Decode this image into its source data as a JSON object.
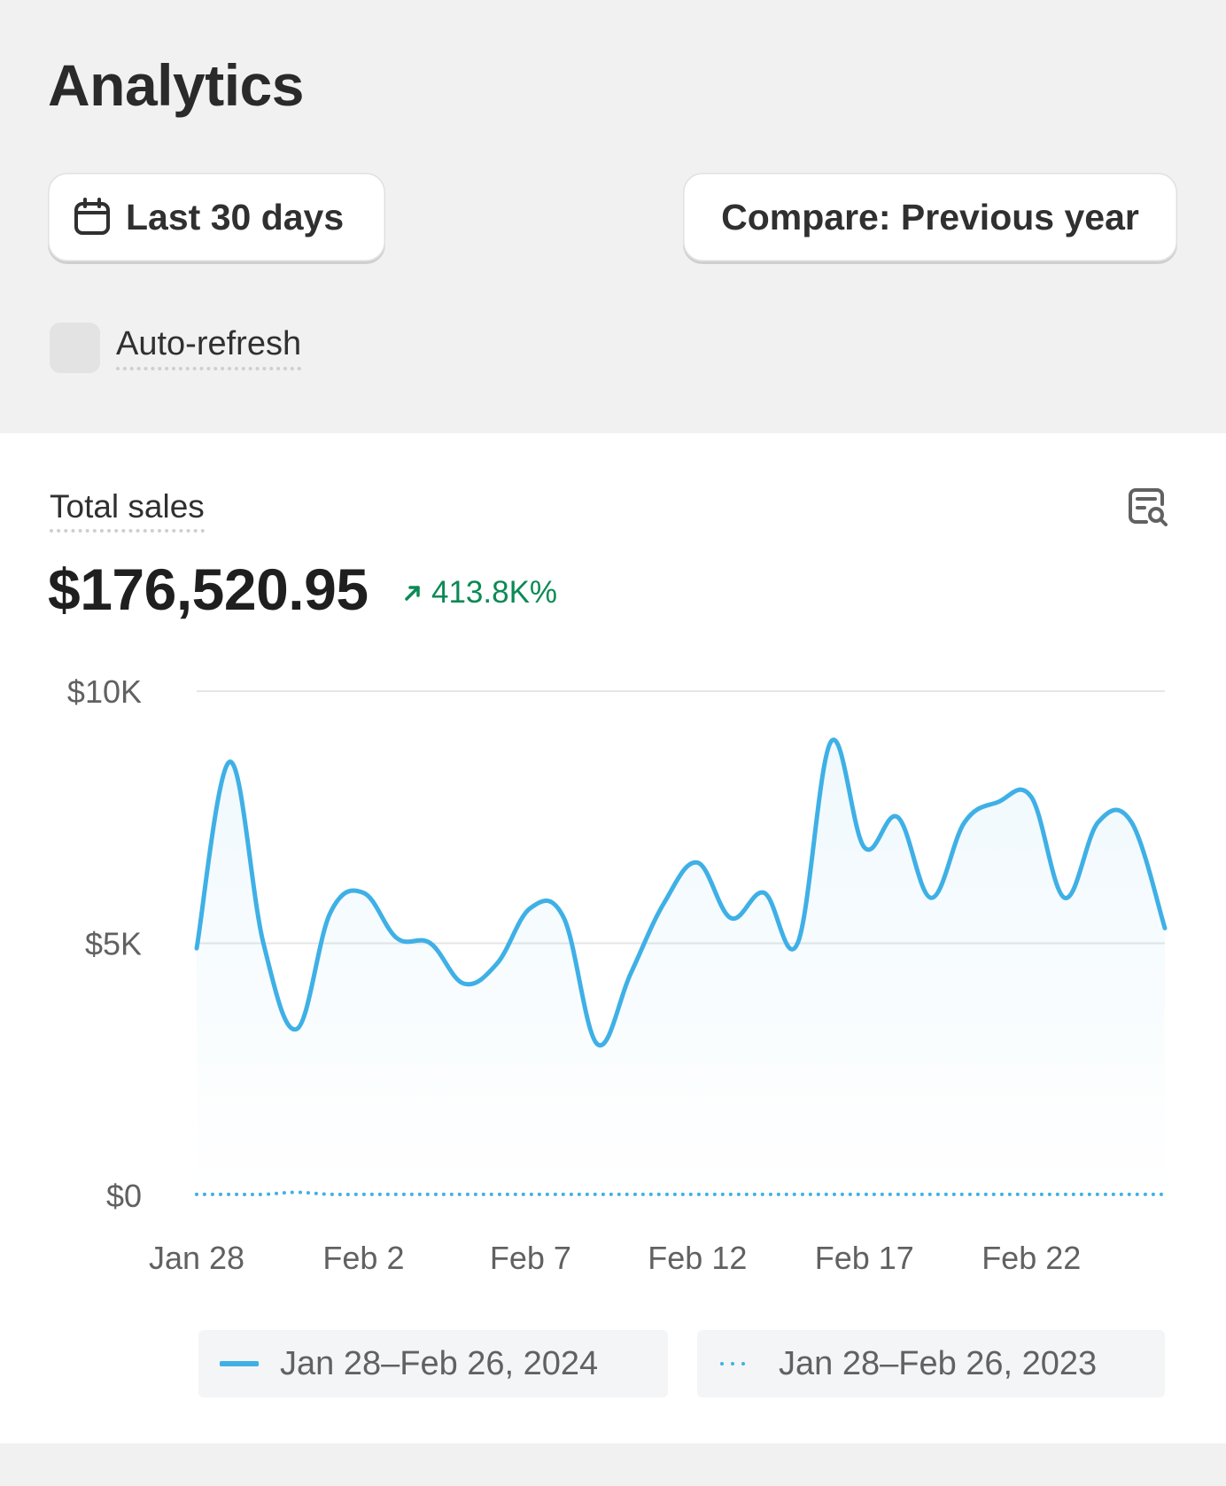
{
  "header": {
    "title": "Analytics",
    "date_button_label": "Last 30 days",
    "compare_button_label": "Compare: Previous year",
    "auto_refresh_label": "Auto-refresh"
  },
  "card": {
    "metric_label": "Total sales",
    "metric_value": "$176,520.95",
    "metric_change": "413.8K%",
    "change_color": "#0b8a55"
  },
  "chart_data": {
    "type": "line",
    "y_ticks": [
      "$10K",
      "$5K",
      "$0"
    ],
    "ylim": [
      0,
      10000
    ],
    "x_tick_labels": [
      "Jan 28",
      "Feb 2",
      "Feb 7",
      "Feb 12",
      "Feb 17",
      "Feb 22"
    ],
    "series": [
      {
        "name": "Jan 28–Feb 26, 2024",
        "style": "solid",
        "color": "#3fb0e6",
        "values": [
          4900,
          8600,
          5000,
          3300,
          5600,
          6000,
          5100,
          5000,
          4200,
          4600,
          5700,
          5500,
          3000,
          4400,
          5800,
          6600,
          5500,
          6000,
          5000,
          9000,
          6900,
          7500,
          5900,
          7400,
          7800,
          7900,
          5900,
          7400,
          7400,
          5300
        ]
      },
      {
        "name": "Jan 28–Feb 26, 2023",
        "style": "dotted",
        "color": "#3fb0e6",
        "values": [
          20,
          20,
          20,
          60,
          20,
          20,
          20,
          20,
          20,
          20,
          20,
          20,
          20,
          20,
          20,
          20,
          20,
          20,
          20,
          20,
          20,
          20,
          20,
          20,
          20,
          20,
          20,
          20,
          20,
          20
        ]
      }
    ]
  }
}
